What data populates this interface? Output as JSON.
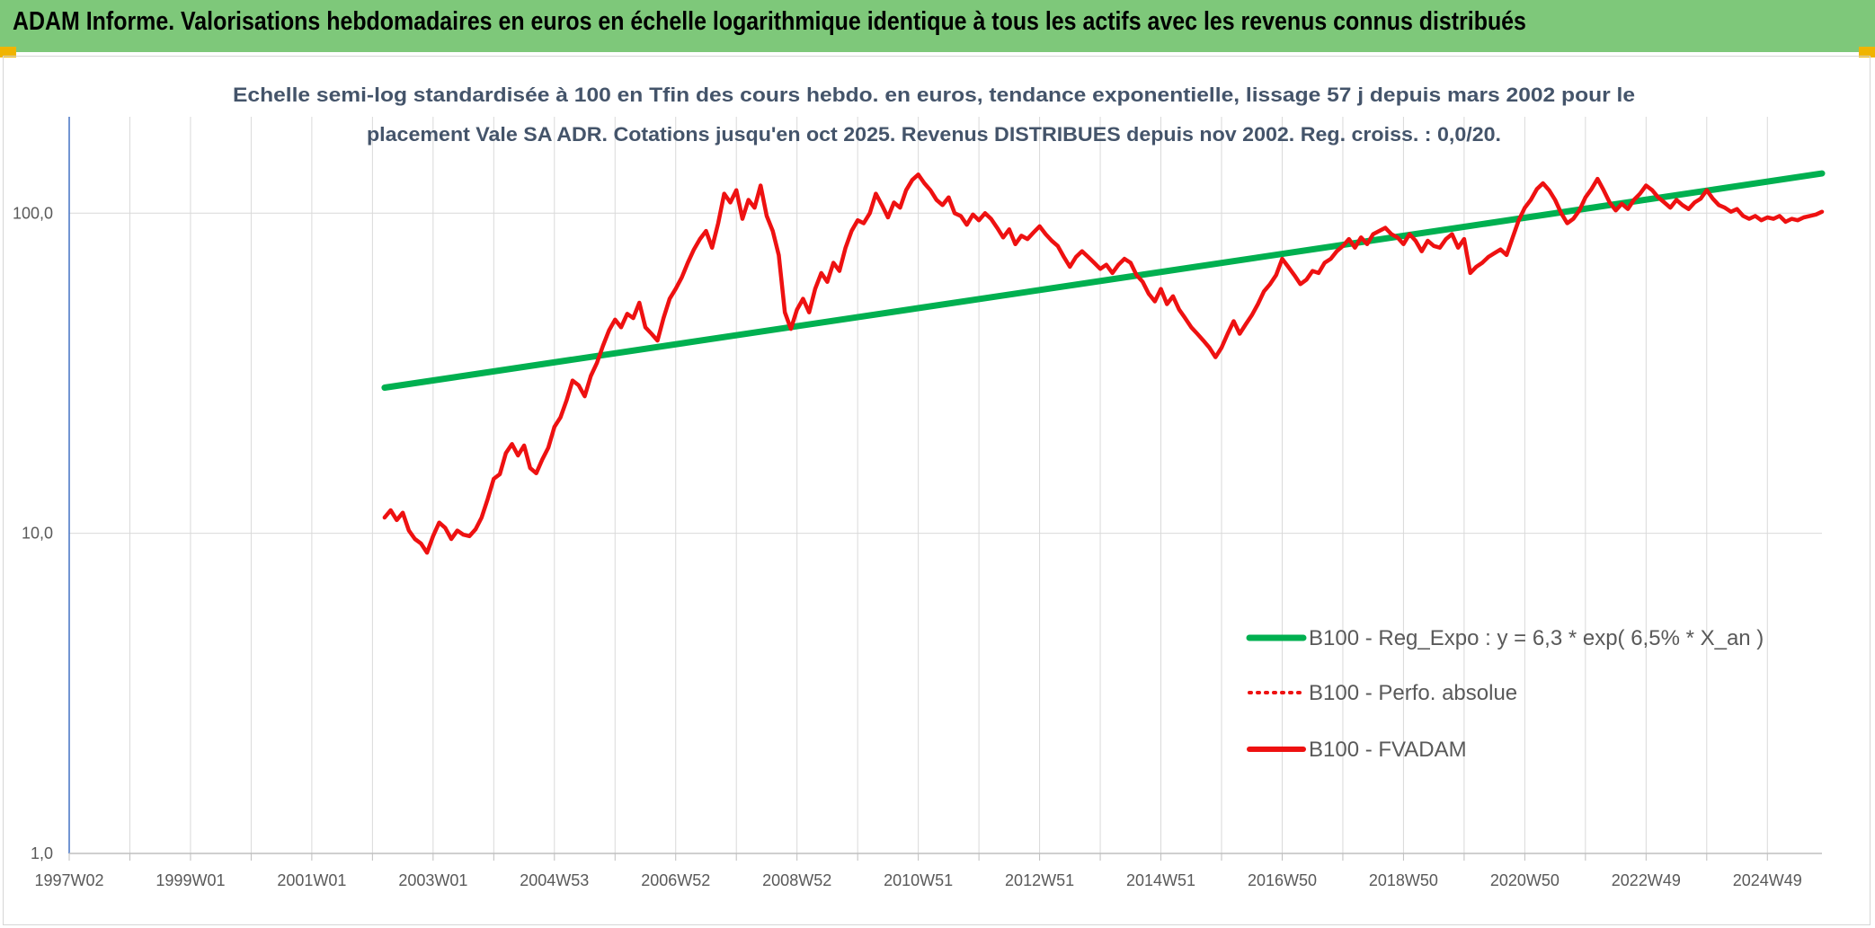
{
  "header": {
    "title": "ADAM Informe. Valorisations hebdomadaires en euros en échelle logarithmique identique à tous les actifs avec les revenus connus distribués"
  },
  "colors": {
    "header_bg": "#7ec87a",
    "regression": "#00b050",
    "fvadam": "#ee1111",
    "perf": "#ee1111",
    "subtitle": "#44546a",
    "grid": "#d9d9d9",
    "axis": "#4472c4"
  },
  "chart_data": {
    "type": "line",
    "yscale": "log",
    "title_lines": [
      "Echelle semi-log standardisée à 100 en Tfin des cours hebdo. en euros, tendance exponentielle, lissage 57 j depuis mars 2002 pour le",
      "placement Vale SA ADR. Cotations jusqu'en oct 2025. Revenus DISTRIBUES depuis nov 2002. Reg. croiss. : 0,0/20."
    ],
    "xlim": [
      1997.0,
      2025.9
    ],
    "ylim": [
      1,
      200
    ],
    "y_ticks": [
      {
        "value": 1,
        "label": "1,0"
      },
      {
        "value": 10,
        "label": "10,0"
      },
      {
        "value": 100,
        "label": "100,0"
      }
    ],
    "x_ticks": [
      {
        "value": 1997.0,
        "label": "1997W02"
      },
      {
        "value": 1999.0,
        "label": "1999W01"
      },
      {
        "value": 2001.0,
        "label": "2001W01"
      },
      {
        "value": 2003.0,
        "label": "2003W01"
      },
      {
        "value": 2005.0,
        "label": "2004W53"
      },
      {
        "value": 2007.0,
        "label": "2006W52"
      },
      {
        "value": 2009.0,
        "label": "2008W52"
      },
      {
        "value": 2011.0,
        "label": "2010W51"
      },
      {
        "value": 2013.0,
        "label": "2012W51"
      },
      {
        "value": 2015.0,
        "label": "2014W51"
      },
      {
        "value": 2017.0,
        "label": "2016W50"
      },
      {
        "value": 2019.0,
        "label": "2018W50"
      },
      {
        "value": 2021.0,
        "label": "2020W50"
      },
      {
        "value": 2023.0,
        "label": "2022W49"
      },
      {
        "value": 2025.0,
        "label": "2024W49"
      }
    ],
    "minor_x_ticks": [
      1998,
      2000,
      2002,
      2004,
      2006,
      2008,
      2010,
      2012,
      2014,
      2016,
      2018,
      2020,
      2022,
      2024
    ],
    "series": [
      {
        "name": "B100 - Reg_Expo : y = 6,3 * exp( 6,5% *  X_an )",
        "style": "solid-thick",
        "points": [
          [
            2002.2,
            28.5
          ],
          [
            2025.9,
            133
          ]
        ]
      },
      {
        "name": "B100 - Perfo. absolue",
        "style": "dotted",
        "points": []
      },
      {
        "name": "B100 - FVADAM",
        "style": "solid",
        "points": [
          [
            2002.2,
            11.2
          ],
          [
            2002.3,
            11.8
          ],
          [
            2002.4,
            11.0
          ],
          [
            2002.5,
            11.6
          ],
          [
            2002.6,
            10.2
          ],
          [
            2002.7,
            9.6
          ],
          [
            2002.8,
            9.3
          ],
          [
            2002.9,
            8.7
          ],
          [
            2003.0,
            9.8
          ],
          [
            2003.1,
            10.8
          ],
          [
            2003.2,
            10.4
          ],
          [
            2003.3,
            9.6
          ],
          [
            2003.4,
            10.2
          ],
          [
            2003.5,
            9.9
          ],
          [
            2003.6,
            9.8
          ],
          [
            2003.7,
            10.3
          ],
          [
            2003.8,
            11.2
          ],
          [
            2003.9,
            12.8
          ],
          [
            2004.0,
            14.8
          ],
          [
            2004.1,
            15.3
          ],
          [
            2004.2,
            17.8
          ],
          [
            2004.3,
            19.0
          ],
          [
            2004.4,
            17.5
          ],
          [
            2004.5,
            18.8
          ],
          [
            2004.6,
            16.0
          ],
          [
            2004.7,
            15.4
          ],
          [
            2004.8,
            17.0
          ],
          [
            2004.9,
            18.5
          ],
          [
            2005.0,
            21.5
          ],
          [
            2005.1,
            23.0
          ],
          [
            2005.2,
            26.0
          ],
          [
            2005.3,
            30.0
          ],
          [
            2005.4,
            29.0
          ],
          [
            2005.5,
            26.8
          ],
          [
            2005.6,
            31.0
          ],
          [
            2005.7,
            34.0
          ],
          [
            2005.8,
            38.5
          ],
          [
            2005.9,
            43.0
          ],
          [
            2006.0,
            46.5
          ],
          [
            2006.1,
            44.0
          ],
          [
            2006.2,
            48.5
          ],
          [
            2006.3,
            47.0
          ],
          [
            2006.4,
            52.5
          ],
          [
            2006.5,
            44.0
          ],
          [
            2006.6,
            42.0
          ],
          [
            2006.7,
            40.0
          ],
          [
            2006.8,
            47.0
          ],
          [
            2006.9,
            54.0
          ],
          [
            2007.0,
            58.0
          ],
          [
            2007.1,
            63.0
          ],
          [
            2007.2,
            70.0
          ],
          [
            2007.3,
            77.0
          ],
          [
            2007.4,
            83.0
          ],
          [
            2007.5,
            88.0
          ],
          [
            2007.6,
            78.0
          ],
          [
            2007.7,
            93.0
          ],
          [
            2007.8,
            115.0
          ],
          [
            2007.9,
            108.0
          ],
          [
            2008.0,
            118.0
          ],
          [
            2008.1,
            96.0
          ],
          [
            2008.2,
            110.0
          ],
          [
            2008.3,
            104.0
          ],
          [
            2008.4,
            122.0
          ],
          [
            2008.5,
            98.0
          ],
          [
            2008.6,
            88.0
          ],
          [
            2008.7,
            74.0
          ],
          [
            2008.8,
            49.0
          ],
          [
            2008.9,
            43.5
          ],
          [
            2009.0,
            50.0
          ],
          [
            2009.1,
            54.0
          ],
          [
            2009.2,
            49.0
          ],
          [
            2009.3,
            58.0
          ],
          [
            2009.4,
            65.0
          ],
          [
            2009.5,
            61.0
          ],
          [
            2009.6,
            70.0
          ],
          [
            2009.7,
            66.0
          ],
          [
            2009.8,
            78.0
          ],
          [
            2009.9,
            88.0
          ],
          [
            2010.0,
            95.0
          ],
          [
            2010.1,
            93.0
          ],
          [
            2010.2,
            100.0
          ],
          [
            2010.3,
            115.0
          ],
          [
            2010.4,
            106.0
          ],
          [
            2010.5,
            97.0
          ],
          [
            2010.6,
            108.0
          ],
          [
            2010.7,
            104.0
          ],
          [
            2010.8,
            118.0
          ],
          [
            2010.9,
            127.0
          ],
          [
            2011.0,
            132.0
          ],
          [
            2011.1,
            124.0
          ],
          [
            2011.2,
            118.0
          ],
          [
            2011.3,
            110.0
          ],
          [
            2011.4,
            106.0
          ],
          [
            2011.5,
            112.0
          ],
          [
            2011.6,
            100.0
          ],
          [
            2011.7,
            98.0
          ],
          [
            2011.8,
            92.0
          ],
          [
            2011.9,
            99.0
          ],
          [
            2012.0,
            95.0
          ],
          [
            2012.1,
            100.0
          ],
          [
            2012.2,
            96.0
          ],
          [
            2012.3,
            90.0
          ],
          [
            2012.4,
            84.0
          ],
          [
            2012.5,
            89.0
          ],
          [
            2012.6,
            80.0
          ],
          [
            2012.7,
            85.0
          ],
          [
            2012.8,
            83.0
          ],
          [
            2012.9,
            87.0
          ],
          [
            2013.0,
            91.0
          ],
          [
            2013.1,
            86.0
          ],
          [
            2013.2,
            82.0
          ],
          [
            2013.3,
            79.0
          ],
          [
            2013.4,
            73.0
          ],
          [
            2013.5,
            68.0
          ],
          [
            2013.6,
            73.0
          ],
          [
            2013.7,
            76.0
          ],
          [
            2013.8,
            73.0
          ],
          [
            2013.9,
            70.0
          ],
          [
            2014.0,
            67.0
          ],
          [
            2014.1,
            69.0
          ],
          [
            2014.2,
            65.0
          ],
          [
            2014.3,
            69.0
          ],
          [
            2014.4,
            72.0
          ],
          [
            2014.5,
            70.0
          ],
          [
            2014.6,
            64.0
          ],
          [
            2014.7,
            61.0
          ],
          [
            2014.8,
            56.0
          ],
          [
            2014.9,
            53.0
          ],
          [
            2015.0,
            58.0
          ],
          [
            2015.1,
            52.0
          ],
          [
            2015.2,
            55.0
          ],
          [
            2015.3,
            50.0
          ],
          [
            2015.4,
            47.0
          ],
          [
            2015.5,
            44.0
          ],
          [
            2015.6,
            42.0
          ],
          [
            2015.7,
            40.0
          ],
          [
            2015.8,
            38.0
          ],
          [
            2015.9,
            35.5
          ],
          [
            2016.0,
            38.0
          ],
          [
            2016.1,
            42.0
          ],
          [
            2016.2,
            46.0
          ],
          [
            2016.3,
            42.0
          ],
          [
            2016.4,
            45.0
          ],
          [
            2016.5,
            48.0
          ],
          [
            2016.6,
            52.0
          ],
          [
            2016.7,
            57.0
          ],
          [
            2016.8,
            60.0
          ],
          [
            2016.9,
            64.0
          ],
          [
            2017.0,
            72.0
          ],
          [
            2017.1,
            68.0
          ],
          [
            2017.2,
            64.0
          ],
          [
            2017.3,
            60.0
          ],
          [
            2017.4,
            62.0
          ],
          [
            2017.5,
            66.0
          ],
          [
            2017.6,
            65.0
          ],
          [
            2017.7,
            70.0
          ],
          [
            2017.8,
            72.0
          ],
          [
            2017.9,
            76.0
          ],
          [
            2018.0,
            79.0
          ],
          [
            2018.1,
            83.0
          ],
          [
            2018.2,
            78.0
          ],
          [
            2018.3,
            84.0
          ],
          [
            2018.4,
            80.0
          ],
          [
            2018.5,
            86.0
          ],
          [
            2018.6,
            88.0
          ],
          [
            2018.7,
            90.0
          ],
          [
            2018.8,
            86.0
          ],
          [
            2018.9,
            84.0
          ],
          [
            2019.0,
            80.0
          ],
          [
            2019.1,
            86.0
          ],
          [
            2019.2,
            82.0
          ],
          [
            2019.3,
            76.0
          ],
          [
            2019.4,
            82.0
          ],
          [
            2019.5,
            79.0
          ],
          [
            2019.6,
            78.0
          ],
          [
            2019.7,
            83.0
          ],
          [
            2019.8,
            86.0
          ],
          [
            2019.9,
            78.0
          ],
          [
            2020.0,
            83.0
          ],
          [
            2020.1,
            65.0
          ],
          [
            2020.2,
            68.0
          ],
          [
            2020.3,
            70.0
          ],
          [
            2020.4,
            73.0
          ],
          [
            2020.5,
            75.0
          ],
          [
            2020.6,
            77.0
          ],
          [
            2020.7,
            74.0
          ],
          [
            2020.8,
            84.0
          ],
          [
            2020.9,
            95.0
          ],
          [
            2021.0,
            104.0
          ],
          [
            2021.1,
            110.0
          ],
          [
            2021.2,
            119.0
          ],
          [
            2021.3,
            124.0
          ],
          [
            2021.4,
            118.0
          ],
          [
            2021.5,
            110.0
          ],
          [
            2021.6,
            100.0
          ],
          [
            2021.7,
            93.0
          ],
          [
            2021.8,
            96.0
          ],
          [
            2021.9,
            102.0
          ],
          [
            2022.0,
            112.0
          ],
          [
            2022.1,
            119.0
          ],
          [
            2022.2,
            128.0
          ],
          [
            2022.3,
            118.0
          ],
          [
            2022.4,
            108.0
          ],
          [
            2022.5,
            102.0
          ],
          [
            2022.6,
            107.0
          ],
          [
            2022.7,
            103.0
          ],
          [
            2022.8,
            110.0
          ],
          [
            2022.9,
            115.0
          ],
          [
            2023.0,
            122.0
          ],
          [
            2023.1,
            118.0
          ],
          [
            2023.2,
            112.0
          ],
          [
            2023.3,
            108.0
          ],
          [
            2023.4,
            104.0
          ],
          [
            2023.5,
            110.0
          ],
          [
            2023.6,
            106.0
          ],
          [
            2023.7,
            103.0
          ],
          [
            2023.8,
            108.0
          ],
          [
            2023.9,
            111.0
          ],
          [
            2024.0,
            118.0
          ],
          [
            2024.1,
            111.0
          ],
          [
            2024.2,
            106.0
          ],
          [
            2024.3,
            104.0
          ],
          [
            2024.4,
            101.0
          ],
          [
            2024.5,
            103.0
          ],
          [
            2024.6,
            98.0
          ],
          [
            2024.7,
            96.0
          ],
          [
            2024.8,
            98.0
          ],
          [
            2024.9,
            95.0
          ],
          [
            2025.0,
            97.0
          ],
          [
            2025.1,
            96.0
          ],
          [
            2025.2,
            98.0
          ],
          [
            2025.3,
            94.0
          ],
          [
            2025.4,
            96.0
          ],
          [
            2025.5,
            95.0
          ],
          [
            2025.6,
            97.0
          ],
          [
            2025.7,
            98.0
          ],
          [
            2025.8,
            99.0
          ],
          [
            2025.9,
            101.0
          ]
        ]
      }
    ],
    "legend_position": "bottom-right"
  }
}
